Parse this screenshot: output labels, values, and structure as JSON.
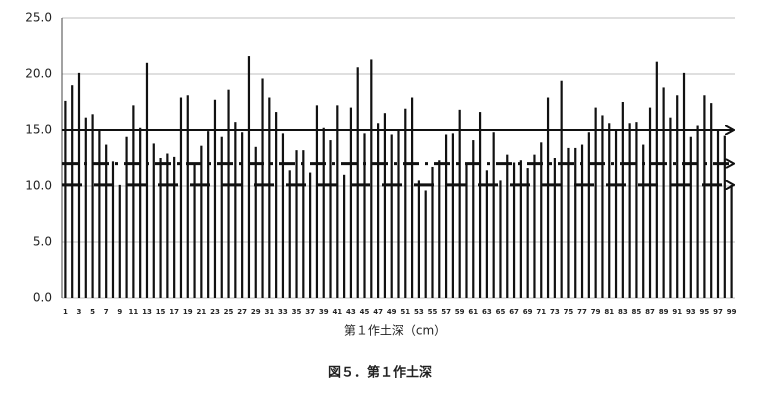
{
  "chart_data": {
    "type": "bar",
    "title": "図５．第１作土深",
    "x_label": "第１作土深（cm）",
    "categories": [
      "1",
      null,
      "3",
      null,
      "5",
      null,
      "7",
      null,
      "9",
      null,
      "11",
      null,
      "13",
      null,
      "15",
      null,
      "17",
      null,
      "19",
      null,
      "21",
      null,
      "23",
      null,
      "25",
      null,
      "27",
      null,
      "29",
      null,
      "31",
      null,
      "33",
      null,
      "35",
      null,
      "37",
      null,
      "39",
      null,
      "41",
      null,
      "43",
      null,
      "45",
      null,
      "47",
      null,
      "49",
      null,
      "51",
      null,
      "53",
      null,
      "55",
      null,
      "57",
      null,
      "59",
      null,
      "61",
      null,
      "63",
      null,
      "65",
      null,
      "67",
      null,
      "69",
      null,
      "71",
      null,
      "73",
      null,
      "75",
      null,
      "77",
      null,
      "79",
      null,
      "81",
      null,
      "83",
      null,
      "85",
      null,
      "87",
      null,
      "89",
      null,
      "91",
      null,
      "93",
      null,
      "95",
      null,
      "97",
      null,
      "99"
    ],
    "values": [
      17.6,
      19.0,
      20.1,
      16.1,
      16.4,
      15.0,
      13.7,
      12.2,
      10.1,
      14.4,
      17.2,
      15.2,
      21.0,
      13.8,
      12.5,
      12.9,
      12.6,
      17.9,
      18.1,
      11.9,
      13.6,
      14.9,
      17.7,
      14.4,
      18.6,
      15.7,
      14.8,
      21.6,
      13.5,
      19.6,
      17.9,
      16.6,
      14.7,
      11.4,
      13.2,
      13.2,
      11.2,
      17.2,
      15.2,
      14.1,
      17.2,
      11.0,
      17.0,
      20.6,
      14.7,
      21.3,
      15.6,
      16.5,
      14.6,
      15.0,
      16.9,
      17.9,
      10.5,
      9.6,
      11.7,
      12.3,
      14.6,
      14.7,
      16.8,
      11.9,
      14.1,
      16.6,
      11.4,
      14.8,
      10.5,
      12.8,
      12.1,
      12.3,
      11.6,
      12.8,
      13.9,
      17.9,
      12.5,
      19.4,
      13.4,
      13.4,
      13.7,
      14.8,
      17.0,
      16.3,
      15.6,
      15.0,
      17.5,
      15.6,
      15.7,
      13.7,
      17.0,
      21.1,
      18.8,
      16.1,
      18.1,
      20.1,
      14.4,
      15.4,
      18.1,
      17.4,
      15.0,
      14.5,
      10.1
    ],
    "color": "#111111",
    "ylim": [
      0,
      25
    ],
    "yticks": [
      {
        "value": 0,
        "label": "0.0"
      },
      {
        "value": 5,
        "label": "5.0"
      },
      {
        "value": 10,
        "label": "10.0"
      },
      {
        "value": 15,
        "label": "15.0"
      },
      {
        "value": 20,
        "label": "20.0"
      },
      {
        "value": 25,
        "label": "25.0"
      }
    ],
    "grid": true,
    "reference_lines": [
      {
        "value": 15.0,
        "style": "solid"
      },
      {
        "value": 12.0,
        "style": "dashdot"
      },
      {
        "value": 10.1,
        "style": "dashed"
      }
    ]
  }
}
